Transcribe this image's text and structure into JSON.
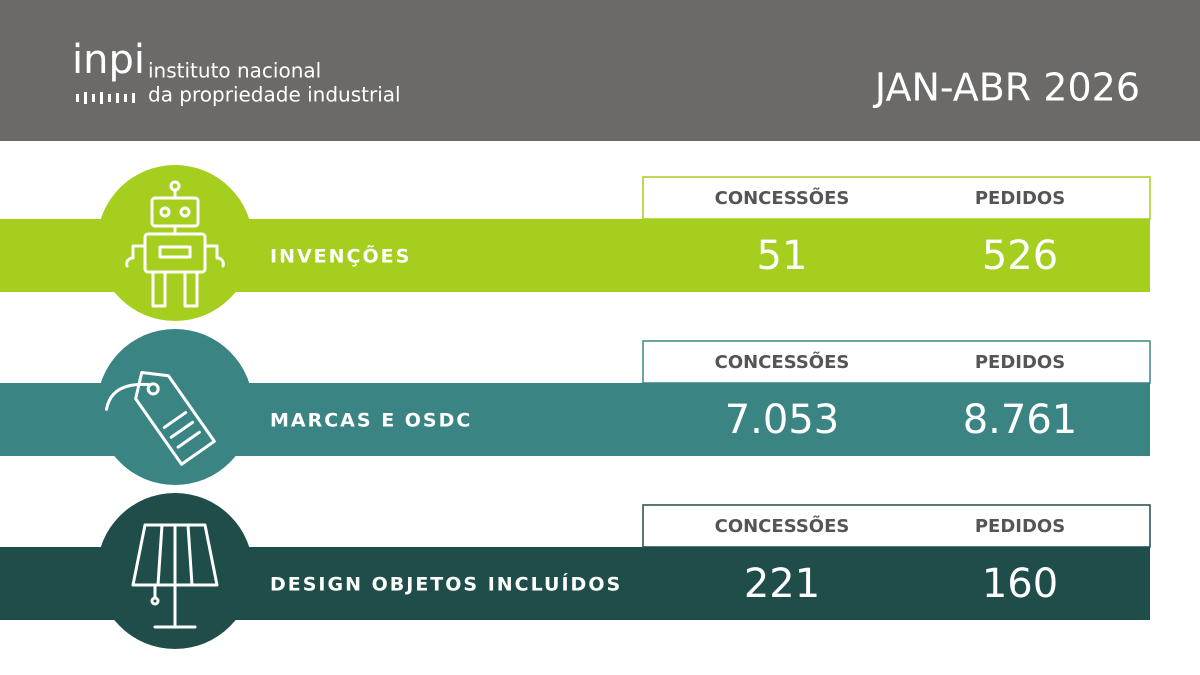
{
  "header": {
    "logo": "inpi",
    "organization": [
      "instituto nacional",
      "da propriedade industrial"
    ],
    "period": "JAN-ABR 2026"
  },
  "sections": [
    {
      "label": "INVENÇÕES",
      "columns": [
        "CONCESSÕES",
        "PEDIDOS"
      ],
      "values": [
        "51",
        "526"
      ]
    },
    {
      "label": "MARCAS E OSDC",
      "columns": [
        "CONCESSÕES",
        "PEDIDOS"
      ],
      "values": [
        "7.053",
        "8.761"
      ]
    },
    {
      "label": "DESIGN OBJETOS INCLUÍDOS",
      "columns": [
        "CONCESSÕES",
        "PEDIDOS"
      ],
      "values": [
        "221",
        "160"
      ]
    }
  ]
}
